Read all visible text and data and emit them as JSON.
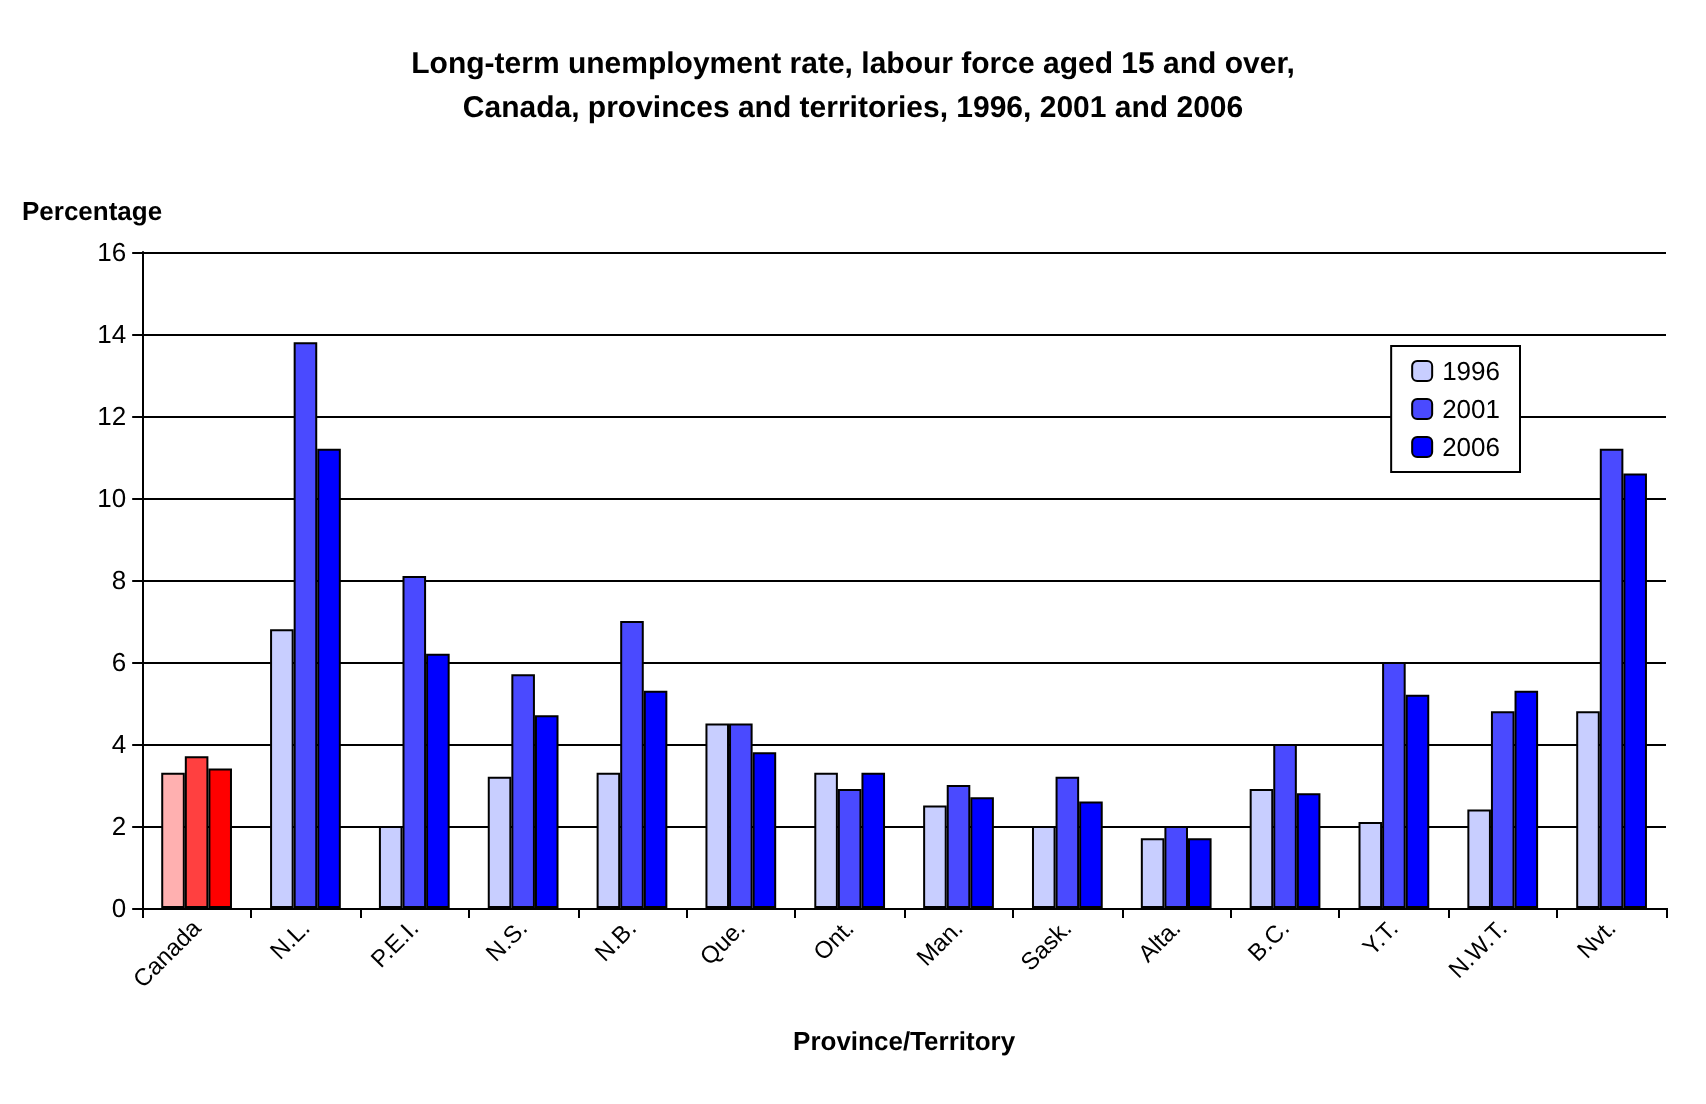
{
  "chart_data": {
    "type": "bar",
    "title": "Long-term unemployment rate, labour force aged 15 and over,\nCanada, provinces and territories, 1996, 2001 and 2006",
    "ylabel": "Percentage",
    "xlabel": "Province/Territory",
    "categories": [
      "Canada",
      "N.L.",
      "P.E.I.",
      "N.S.",
      "N.B.",
      "Que.",
      "Ont.",
      "Man.",
      "Sask.",
      "Alta.",
      "B.C.",
      "Y.T.",
      "N.W.T.",
      "Nvt."
    ],
    "series": [
      {
        "name": "1996",
        "color": "#c8ceff",
        "colors": [
          "#ffb0b0",
          "#c8ceff",
          "#c8ceff",
          "#c8ceff",
          "#c8ceff",
          "#c8ceff",
          "#c8ceff",
          "#c8ceff",
          "#c8ceff",
          "#c8ceff",
          "#c8ceff",
          "#c8ceff",
          "#c8ceff",
          "#c8ceff"
        ],
        "values": [
          3.3,
          6.8,
          2.0,
          3.2,
          3.3,
          4.5,
          3.3,
          2.5,
          2.0,
          1.7,
          2.9,
          2.1,
          2.4,
          4.8
        ]
      },
      {
        "name": "2001",
        "color": "#4a4aff",
        "colors": [
          "#ff4040",
          "#4a4aff",
          "#4a4aff",
          "#4a4aff",
          "#4a4aff",
          "#4a4aff",
          "#4a4aff",
          "#4a4aff",
          "#4a4aff",
          "#4a4aff",
          "#4a4aff",
          "#4a4aff",
          "#4a4aff",
          "#4a4aff"
        ],
        "values": [
          3.7,
          13.8,
          8.1,
          5.7,
          7.0,
          4.5,
          2.9,
          3.0,
          3.2,
          2.0,
          4.0,
          6.0,
          4.8,
          11.2
        ]
      },
      {
        "name": "2006",
        "color": "#0000ff",
        "colors": [
          "#ff0000",
          "#0000ff",
          "#0000ff",
          "#0000ff",
          "#0000ff",
          "#0000ff",
          "#0000ff",
          "#0000ff",
          "#0000ff",
          "#0000ff",
          "#0000ff",
          "#0000ff",
          "#0000ff",
          "#0000ff"
        ],
        "values": [
          3.4,
          11.2,
          6.2,
          4.7,
          5.3,
          3.8,
          3.3,
          2.7,
          2.6,
          1.7,
          2.8,
          5.2,
          5.3,
          10.6
        ]
      }
    ],
    "ylim": [
      0,
      16
    ],
    "yticks": [
      0,
      2,
      4,
      6,
      8,
      10,
      12,
      14,
      16
    ],
    "grid": "y",
    "legend": "top right"
  }
}
